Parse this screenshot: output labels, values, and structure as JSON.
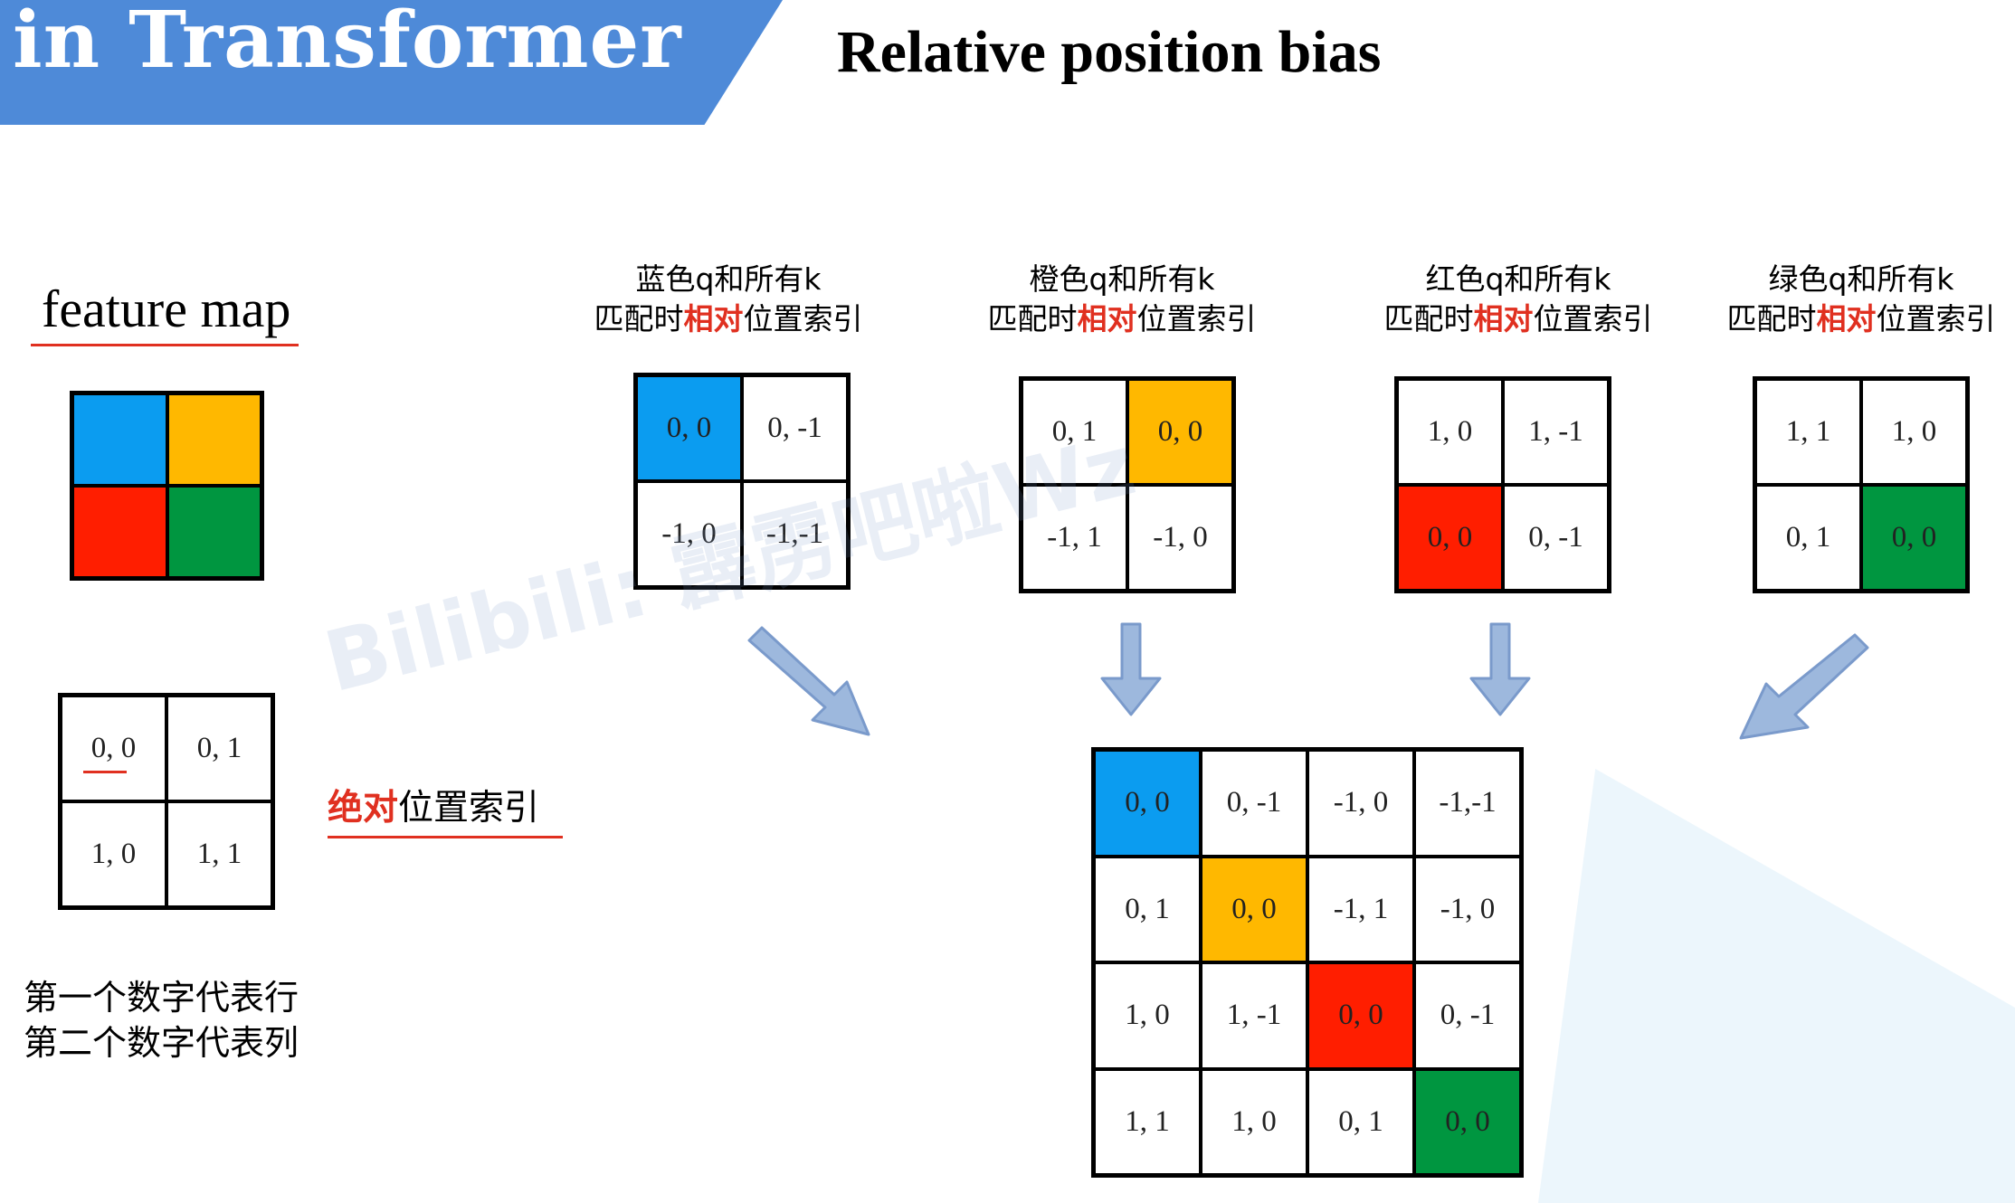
{
  "header": {
    "banner_text": "in Transformer",
    "title": "Relative position bias",
    "banner_color": "#4e8ad8"
  },
  "colors": {
    "blue": "#0b9cf0",
    "yellow": "#ffb800",
    "red": "#ff1e00",
    "green": "#009640",
    "highlight": "#e03020",
    "arrow": "#9db8dd"
  },
  "feature_map": {
    "label": "feature map",
    "colors": [
      "blue",
      "yellow",
      "red",
      "green"
    ]
  },
  "absolute_index": {
    "cells": [
      "0, 0",
      "0, 1",
      "1, 0",
      "1, 1"
    ],
    "label_highlight": "绝对",
    "label_rest": "位置索引"
  },
  "note": {
    "line1": "第一个数字代表行",
    "line2": "第二个数字代表列"
  },
  "relative_grids": [
    {
      "caption_line1": "蓝色q和所有k",
      "caption_pre": "匹配时",
      "caption_highlight": "相对",
      "caption_post": "位置索引",
      "cells": [
        "0, 0",
        "0, -1",
        "-1, 0",
        "-1,-1"
      ],
      "highlight_index": 0,
      "highlight_color": "blue"
    },
    {
      "caption_line1": "橙色q和所有k",
      "caption_pre": "匹配时",
      "caption_highlight": "相对",
      "caption_post": "位置索引",
      "cells": [
        "0, 1",
        "0, 0",
        "-1, 1",
        "-1, 0"
      ],
      "highlight_index": 1,
      "highlight_color": "yellow"
    },
    {
      "caption_line1": "红色q和所有k",
      "caption_pre": "匹配时",
      "caption_highlight": "相对",
      "caption_post": "位置索引",
      "cells": [
        "1, 0",
        "1, -1",
        "0, 0",
        "0, -1"
      ],
      "highlight_index": 2,
      "highlight_color": "red"
    },
    {
      "caption_line1": "绿色q和所有k",
      "caption_pre": "匹配时",
      "caption_highlight": "相对",
      "caption_post": "位置索引",
      "cells": [
        "1, 1",
        "1, 0",
        "0, 1",
        "0, 0"
      ],
      "highlight_index": 3,
      "highlight_color": "green"
    }
  ],
  "big_matrix": {
    "cells": [
      "0, 0",
      "0, -1",
      "-1, 0",
      "-1,-1",
      "0, 1",
      "0, 0",
      "-1, 1",
      "-1, 0",
      "1, 0",
      "1, -1",
      "0, 0",
      "0, -1",
      "1, 1",
      "1, 0",
      "0, 1",
      "0, 0"
    ],
    "highlights": [
      {
        "index": 0,
        "color": "blue"
      },
      {
        "index": 5,
        "color": "yellow"
      },
      {
        "index": 10,
        "color": "red"
      },
      {
        "index": 15,
        "color": "green"
      }
    ]
  },
  "watermark": "Bilibili: 霹雳吧啦Wz"
}
